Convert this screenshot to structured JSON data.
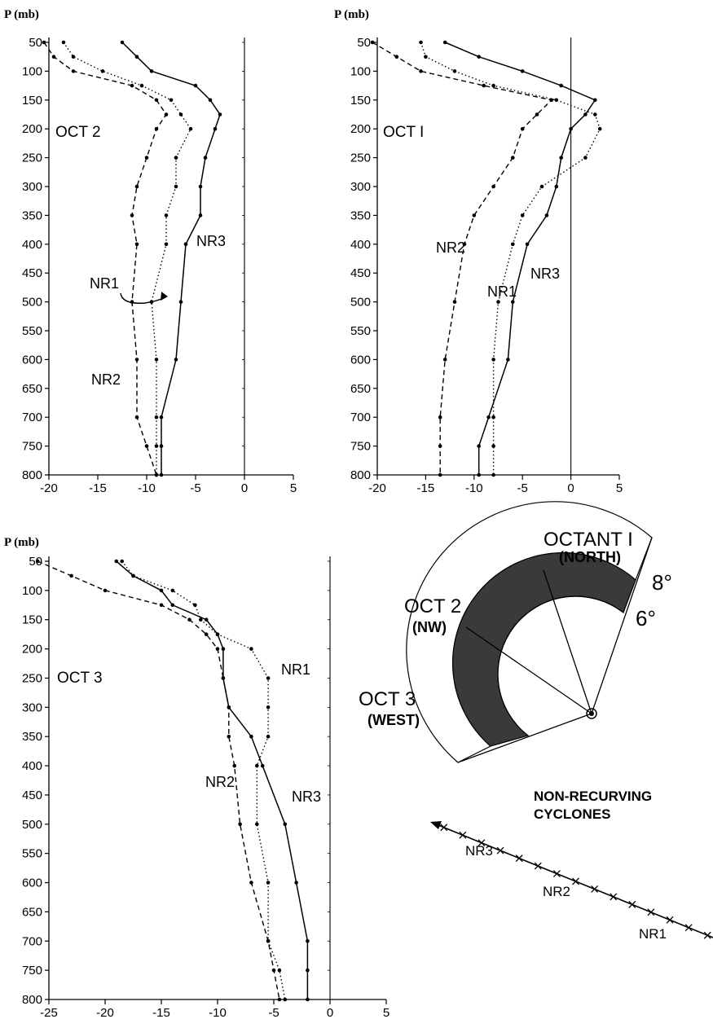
{
  "chart_data": [
    {
      "type": "line",
      "panel_label": "OCT 2",
      "ylabel": "P (mb)",
      "xlim": [
        -20,
        5
      ],
      "ylim": [
        800,
        50
      ],
      "xticks": [
        "-20",
        "-15",
        "-10",
        "-5",
        "0",
        "5"
      ],
      "yticks": [
        "50",
        "100",
        "150",
        "200",
        "250",
        "300",
        "350",
        "400",
        "450",
        "500",
        "550",
        "600",
        "650",
        "700",
        "750",
        "800"
      ],
      "pressure": [
        50,
        75,
        100,
        125,
        150,
        175,
        200,
        250,
        300,
        350,
        400,
        500,
        600,
        700,
        750,
        800
      ],
      "series": [
        {
          "name": "NR1",
          "style": "dotted",
          "values": [
            -18.5,
            -17.5,
            -14.5,
            -10.5,
            -7.5,
            -6.5,
            -5.5,
            -7,
            -7,
            -8,
            -8,
            -9.5,
            -9,
            -9,
            -9,
            -9
          ]
        },
        {
          "name": "NR2",
          "style": "dashed",
          "values": [
            -20.5,
            -19.5,
            -17.5,
            -11.5,
            -9,
            -8,
            -9,
            -10,
            -11,
            -11.5,
            -11,
            -11.5,
            -11,
            -11,
            -10,
            -9
          ]
        },
        {
          "name": "NR3",
          "style": "solid",
          "values": [
            -12.5,
            -11,
            -9.5,
            -5,
            -3.5,
            -2.5,
            -3,
            -4,
            -4.5,
            -4.5,
            -6,
            -6.5,
            -7,
            -8.5,
            -8.5,
            -8.5
          ]
        }
      ],
      "annotations": [
        "NR1",
        "NR2",
        "NR3"
      ]
    },
    {
      "type": "line",
      "panel_label": "OCT I",
      "ylabel": "P (mb)",
      "xlim": [
        -20,
        5
      ],
      "ylim": [
        800,
        50
      ],
      "xticks": [
        "-20",
        "-15",
        "-10",
        "-5",
        "0",
        "5"
      ],
      "yticks": [
        "50",
        "100",
        "150",
        "200",
        "250",
        "300",
        "350",
        "400",
        "450",
        "500",
        "550",
        "600",
        "650",
        "700",
        "750",
        "800"
      ],
      "pressure": [
        50,
        75,
        100,
        125,
        150,
        175,
        200,
        250,
        300,
        350,
        400,
        500,
        600,
        700,
        750,
        800
      ],
      "series": [
        {
          "name": "NR1",
          "style": "dotted",
          "values": [
            -15.5,
            -15,
            -12,
            -8,
            -1.5,
            2.5,
            3,
            1.5,
            -3,
            -5,
            -6,
            -7.5,
            -8,
            -8,
            -8,
            -8
          ]
        },
        {
          "name": "NR2",
          "style": "dashed",
          "values": [
            -20.5,
            -18,
            -15.5,
            -9,
            -2,
            -3.5,
            -5,
            -6,
            -8,
            -10,
            -11,
            -12,
            -13,
            -13.5,
            -13.5,
            -13.5
          ]
        },
        {
          "name": "NR3",
          "style": "solid",
          "values": [
            -13,
            -9.5,
            -5,
            -1,
            2.5,
            1.5,
            0,
            -1,
            -1.5,
            -2.5,
            -4.5,
            -6,
            -6.5,
            -8.5,
            -9.5,
            -9.5
          ]
        }
      ],
      "annotations": [
        "NR2",
        "NR1",
        "NR3"
      ]
    },
    {
      "type": "line",
      "panel_label": "OCT 3",
      "ylabel": "P (mb)",
      "xlim": [
        -25,
        5
      ],
      "ylim": [
        800,
        50
      ],
      "xticks": [
        "-25",
        "-20",
        "-15",
        "-10",
        "-5",
        "0",
        "5"
      ],
      "yticks": [
        "50",
        "100",
        "150",
        "200",
        "250",
        "300",
        "350",
        "400",
        "450",
        "500",
        "550",
        "600",
        "650",
        "700",
        "750",
        "800"
      ],
      "pressure": [
        50,
        75,
        100,
        125,
        150,
        175,
        200,
        250,
        300,
        350,
        400,
        500,
        600,
        700,
        750,
        800
      ],
      "series": [
        {
          "name": "NR1",
          "style": "dotted",
          "values": [
            -18.5,
            -17.5,
            -14,
            -12,
            -11.5,
            -10,
            -7,
            -5.5,
            -5.5,
            -5.5,
            -6.5,
            -6.5,
            -5.5,
            -5.5,
            -4.5,
            -4
          ]
        },
        {
          "name": "NR2",
          "style": "dashed",
          "values": [
            -26,
            -23,
            -20,
            -15,
            -12.5,
            -11,
            -10,
            -9.5,
            -9,
            -9,
            -8.5,
            -8,
            -7,
            -5.5,
            -5,
            -4.5
          ]
        },
        {
          "name": "NR3",
          "style": "solid",
          "values": [
            -19,
            -17.5,
            -15,
            -14,
            -11,
            -10,
            -9.5,
            -9.5,
            -9,
            -7,
            -6,
            -4,
            -3,
            -2,
            -2,
            -2
          ]
        }
      ],
      "annotations": [
        "NR1",
        "NR2",
        "NR3"
      ]
    }
  ],
  "inset": {
    "octant1": "OCTANT I",
    "octant1_sub": "(NORTH)",
    "oct2": "OCT 2",
    "oct2_sub": "(NW)",
    "oct3": "OCT 3",
    "oct3_sub": "(WEST)",
    "outer_radius": "8°",
    "inner_radius": "6°"
  },
  "track": {
    "title_line1": "NON-RECURVING",
    "title_line2": "CYCLONES",
    "labels": [
      "NR3",
      "NR2",
      "NR1"
    ]
  }
}
